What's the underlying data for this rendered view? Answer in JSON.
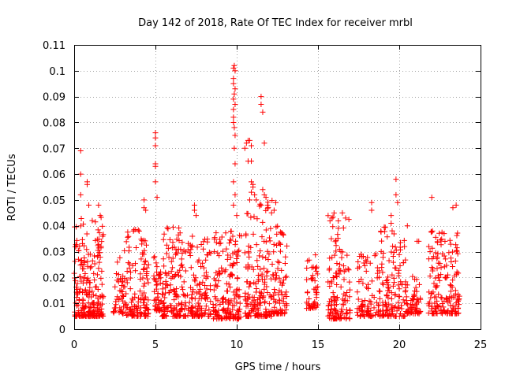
{
  "chart_data": {
    "type": "scatter",
    "title": "Day 142 of 2018, Rate Of TEC Index for receiver mrbl",
    "xlabel": "GPS time / hours",
    "ylabel": "ROTI / TECUs",
    "xlim": [
      0,
      25
    ],
    "ylim": [
      0,
      0.11
    ],
    "grid": true,
    "marker": "+",
    "color": "#ff0000",
    "x_ticks": [
      0,
      5,
      10,
      15,
      20,
      25
    ],
    "x_tick_labels": [
      "0",
      "5",
      "10",
      "15",
      "20",
      "25"
    ],
    "y_ticks": [
      0,
      0.01,
      0.02,
      0.03,
      0.04,
      0.05,
      0.06,
      0.07,
      0.08,
      0.09,
      0.1,
      0.11
    ],
    "y_tick_labels": [
      "0",
      "0.01",
      "0.02",
      "0.03",
      "0.04",
      "0.05",
      "0.06",
      "0.07",
      "0.08",
      "0.09",
      "0.1",
      "0.11"
    ],
    "clusters": [
      {
        "x_start": 0.0,
        "x_end": 1.8,
        "low": 0.005,
        "high": 0.044,
        "count": 230
      },
      {
        "x_start": 2.4,
        "x_end": 3.2,
        "low": 0.006,
        "high": 0.031,
        "count": 50
      },
      {
        "x_start": 3.2,
        "x_end": 4.6,
        "low": 0.005,
        "high": 0.04,
        "count": 130
      },
      {
        "x_start": 4.9,
        "x_end": 5.4,
        "low": 0.007,
        "high": 0.03,
        "count": 45
      },
      {
        "x_start": 5.4,
        "x_end": 7.0,
        "low": 0.005,
        "high": 0.04,
        "count": 150
      },
      {
        "x_start": 7.0,
        "x_end": 8.4,
        "low": 0.005,
        "high": 0.038,
        "count": 120
      },
      {
        "x_start": 8.5,
        "x_end": 10.3,
        "low": 0.004,
        "high": 0.038,
        "count": 170
      },
      {
        "x_start": 10.5,
        "x_end": 12.2,
        "low": 0.005,
        "high": 0.05,
        "count": 170
      },
      {
        "x_start": 12.2,
        "x_end": 13.1,
        "low": 0.006,
        "high": 0.04,
        "count": 80
      },
      {
        "x_start": 14.3,
        "x_end": 15.0,
        "low": 0.008,
        "high": 0.03,
        "count": 50
      },
      {
        "x_start": 15.6,
        "x_end": 17.0,
        "low": 0.004,
        "high": 0.045,
        "count": 130
      },
      {
        "x_start": 17.4,
        "x_end": 18.8,
        "low": 0.005,
        "high": 0.03,
        "count": 90
      },
      {
        "x_start": 18.8,
        "x_end": 20.4,
        "low": 0.005,
        "high": 0.04,
        "count": 130
      },
      {
        "x_start": 20.4,
        "x_end": 21.3,
        "low": 0.006,
        "high": 0.022,
        "count": 60
      },
      {
        "x_start": 21.8,
        "x_end": 23.7,
        "low": 0.006,
        "high": 0.038,
        "count": 170
      }
    ],
    "points": [
      {
        "x": 0.4,
        "y": 0.069
      },
      {
        "x": 0.4,
        "y": 0.06
      },
      {
        "x": 0.4,
        "y": 0.052
      },
      {
        "x": 0.8,
        "y": 0.057
      },
      {
        "x": 0.8,
        "y": 0.056
      },
      {
        "x": 0.9,
        "y": 0.048
      },
      {
        "x": 1.5,
        "y": 0.048
      },
      {
        "x": 1.6,
        "y": 0.044
      },
      {
        "x": 4.3,
        "y": 0.05
      },
      {
        "x": 4.3,
        "y": 0.047
      },
      {
        "x": 4.4,
        "y": 0.046
      },
      {
        "x": 5.0,
        "y": 0.076
      },
      {
        "x": 5.0,
        "y": 0.074
      },
      {
        "x": 5.0,
        "y": 0.071
      },
      {
        "x": 5.0,
        "y": 0.064
      },
      {
        "x": 5.0,
        "y": 0.063
      },
      {
        "x": 5.0,
        "y": 0.057
      },
      {
        "x": 5.1,
        "y": 0.051
      },
      {
        "x": 7.4,
        "y": 0.048
      },
      {
        "x": 7.4,
        "y": 0.046
      },
      {
        "x": 7.5,
        "y": 0.044
      },
      {
        "x": 9.8,
        "y": 0.101
      },
      {
        "x": 9.85,
        "y": 0.102
      },
      {
        "x": 9.9,
        "y": 0.1
      },
      {
        "x": 9.8,
        "y": 0.097
      },
      {
        "x": 9.8,
        "y": 0.095
      },
      {
        "x": 9.9,
        "y": 0.093
      },
      {
        "x": 9.85,
        "y": 0.091
      },
      {
        "x": 9.8,
        "y": 0.089
      },
      {
        "x": 9.9,
        "y": 0.087
      },
      {
        "x": 9.8,
        "y": 0.085
      },
      {
        "x": 9.8,
        "y": 0.082
      },
      {
        "x": 9.8,
        "y": 0.08
      },
      {
        "x": 9.85,
        "y": 0.078
      },
      {
        "x": 9.9,
        "y": 0.075
      },
      {
        "x": 9.85,
        "y": 0.07
      },
      {
        "x": 9.9,
        "y": 0.064
      },
      {
        "x": 9.8,
        "y": 0.057
      },
      {
        "x": 9.9,
        "y": 0.052
      },
      {
        "x": 9.8,
        "y": 0.048
      },
      {
        "x": 10.0,
        "y": 0.044
      },
      {
        "x": 10.6,
        "y": 0.072
      },
      {
        "x": 10.7,
        "y": 0.073
      },
      {
        "x": 10.8,
        "y": 0.073
      },
      {
        "x": 10.9,
        "y": 0.071
      },
      {
        "x": 10.7,
        "y": 0.065
      },
      {
        "x": 10.9,
        "y": 0.065
      },
      {
        "x": 10.5,
        "y": 0.07
      },
      {
        "x": 10.9,
        "y": 0.057
      },
      {
        "x": 11.0,
        "y": 0.056
      },
      {
        "x": 11.0,
        "y": 0.055
      },
      {
        "x": 10.9,
        "y": 0.053
      },
      {
        "x": 11.1,
        "y": 0.052
      },
      {
        "x": 10.8,
        "y": 0.05
      },
      {
        "x": 11.2,
        "y": 0.05
      },
      {
        "x": 11.5,
        "y": 0.09
      },
      {
        "x": 11.5,
        "y": 0.087
      },
      {
        "x": 11.6,
        "y": 0.084
      },
      {
        "x": 11.7,
        "y": 0.072
      },
      {
        "x": 11.6,
        "y": 0.054
      },
      {
        "x": 11.7,
        "y": 0.052
      },
      {
        "x": 11.8,
        "y": 0.051
      },
      {
        "x": 11.5,
        "y": 0.048
      },
      {
        "x": 11.9,
        "y": 0.048
      },
      {
        "x": 12.4,
        "y": 0.049
      },
      {
        "x": 12.3,
        "y": 0.046
      },
      {
        "x": 16.5,
        "y": 0.045
      },
      {
        "x": 16.7,
        "y": 0.043
      },
      {
        "x": 18.3,
        "y": 0.049
      },
      {
        "x": 18.3,
        "y": 0.046
      },
      {
        "x": 19.8,
        "y": 0.058
      },
      {
        "x": 19.8,
        "y": 0.052
      },
      {
        "x": 19.9,
        "y": 0.049
      },
      {
        "x": 19.5,
        "y": 0.044
      },
      {
        "x": 19.5,
        "y": 0.041
      },
      {
        "x": 20.5,
        "y": 0.04
      },
      {
        "x": 21.1,
        "y": 0.034
      },
      {
        "x": 21.2,
        "y": 0.034
      },
      {
        "x": 22.0,
        "y": 0.051
      },
      {
        "x": 23.3,
        "y": 0.047
      },
      {
        "x": 23.5,
        "y": 0.048
      }
    ]
  }
}
